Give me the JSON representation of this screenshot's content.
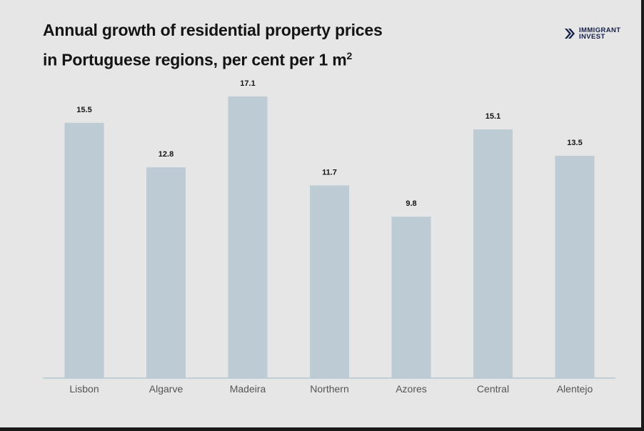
{
  "title": {
    "line1": "Annual growth of residential property prices",
    "line2": "in Portuguese regions, per cent per 1 m",
    "superscript": "2"
  },
  "logo": {
    "line1": "IMMIGRANT",
    "line2": "INVEST",
    "icon": "double-chevron-icon"
  },
  "colors": {
    "background": "#e6e6e6",
    "bar": "#bccbd4",
    "axis": "#b6c6d0",
    "text": "#141414",
    "logo": "#141e4a"
  },
  "chart_data": {
    "type": "bar",
    "title": "Annual growth of residential property prices in Portuguese regions, per cent per 1 m²",
    "categories": [
      "Lisbon",
      "Algarve",
      "Madeira",
      "Northern",
      "Azores",
      "Central",
      "Alentejo"
    ],
    "values": [
      15.5,
      12.8,
      17.1,
      11.7,
      9.8,
      15.1,
      13.5
    ],
    "value_labels": [
      "15.5",
      "12.8",
      "17.1",
      "11.7",
      "9.8",
      "15.1",
      "13.5"
    ],
    "xlabel": "",
    "ylabel": "",
    "ylim": [
      0,
      17.1
    ],
    "grid": false,
    "legend": "none"
  }
}
